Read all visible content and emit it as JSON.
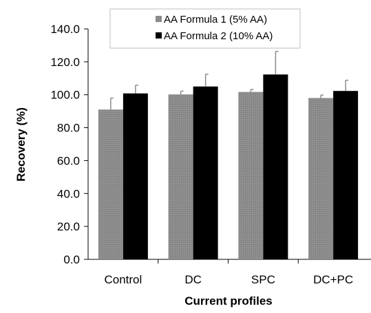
{
  "chart_data": {
    "type": "bar",
    "categories": [
      "Control",
      "DC",
      "SPC",
      "DC+PC"
    ],
    "series": [
      {
        "name": "AA Formula 1 (5% AA)",
        "values": [
          91.0,
          100.2,
          101.7,
          98.0
        ],
        "errors": [
          7.0,
          2.0,
          1.5,
          1.8
        ],
        "color": "#8a8a8a"
      },
      {
        "name": "AA Formula 2 (10% AA)",
        "values": [
          100.8,
          105.0,
          112.3,
          102.3
        ],
        "errors": [
          5.0,
          7.5,
          14.0,
          6.5
        ],
        "color": "#000000"
      }
    ],
    "xlabel": "Current profiles",
    "ylabel": "Recovery (%)",
    "ylim": [
      0,
      140
    ],
    "yticks": [
      "0.0",
      "20.0",
      "40.0",
      "60.0",
      "80.0",
      "100.0",
      "120.0",
      "140.0"
    ],
    "legend_position": "top",
    "grid": false
  }
}
